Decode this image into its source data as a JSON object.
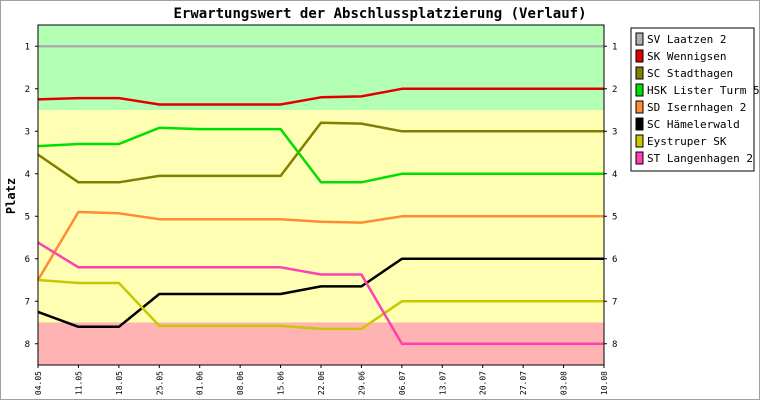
{
  "chart_data": {
    "type": "line",
    "title": "Erwartungswert der Abschlussplatzierung (Verlauf)",
    "ylabel": "Platz",
    "xlabel": "",
    "ylim": [
      8.5,
      0.5
    ],
    "y_inverted": true,
    "yticks": [
      1,
      2,
      3,
      4,
      5,
      6,
      7,
      8
    ],
    "x": [
      "04.05",
      "11.05",
      "18.05",
      "25.05",
      "01.06",
      "08.06",
      "15.06",
      "22.06",
      "29.06",
      "06.07",
      "13.07",
      "20.07",
      "27.07",
      "03.08",
      "10.08"
    ],
    "zones": [
      {
        "from": 0.5,
        "to": 2.5,
        "color": "#b3ffb3"
      },
      {
        "from": 2.5,
        "to": 7.5,
        "color": "#ffffb3"
      },
      {
        "from": 7.5,
        "to": 8.5,
        "color": "#ffb3b3"
      }
    ],
    "grid": false,
    "legend_position": "right",
    "series": [
      {
        "name": "SV Laatzen 2",
        "color": "#b0b0b0",
        "values": [
          1,
          1,
          1,
          1,
          1,
          1,
          1,
          1,
          1,
          1,
          1,
          1,
          1,
          1,
          1
        ]
      },
      {
        "name": "SK Wennigsen",
        "color": "#e00000",
        "values": [
          2.25,
          2.22,
          2.22,
          2.37,
          2.37,
          2.37,
          2.37,
          2.2,
          2.18,
          2,
          2,
          2,
          2,
          2,
          2
        ]
      },
      {
        "name": "SC Stadthagen",
        "color": "#808000",
        "values": [
          3.55,
          4.2,
          4.2,
          4.05,
          4.05,
          4.05,
          4.05,
          2.8,
          2.82,
          3,
          3,
          3,
          3,
          3,
          3
        ]
      },
      {
        "name": "HSK Lister Turm 5",
        "color": "#00e000",
        "values": [
          3.35,
          3.3,
          3.3,
          2.92,
          2.95,
          2.95,
          2.95,
          4.2,
          4.2,
          4,
          4,
          4,
          4,
          4,
          4
        ]
      },
      {
        "name": "SD Isernhagen 2",
        "color": "#ff8c32",
        "values": [
          6.5,
          4.9,
          4.93,
          5.07,
          5.07,
          5.07,
          5.07,
          5.13,
          5.15,
          5,
          5,
          5,
          5,
          5,
          5
        ]
      },
      {
        "name": "SC Hämelerwald",
        "color": "#000000",
        "values": [
          7.25,
          7.6,
          7.6,
          6.83,
          6.83,
          6.83,
          6.83,
          6.65,
          6.65,
          6,
          6,
          6,
          6,
          6,
          6
        ]
      },
      {
        "name": "Eystruper SK",
        "color": "#c8c800",
        "values": [
          6.5,
          6.57,
          6.57,
          7.58,
          7.58,
          7.58,
          7.58,
          7.65,
          7.65,
          7,
          7,
          7,
          7,
          7,
          7
        ]
      },
      {
        "name": "ST Langenhagen 2",
        "color": "#ff40b0",
        "values": [
          5.62,
          6.2,
          6.2,
          6.2,
          6.2,
          6.2,
          6.2,
          6.37,
          6.37,
          8,
          8,
          8,
          8,
          8,
          8
        ]
      }
    ]
  }
}
